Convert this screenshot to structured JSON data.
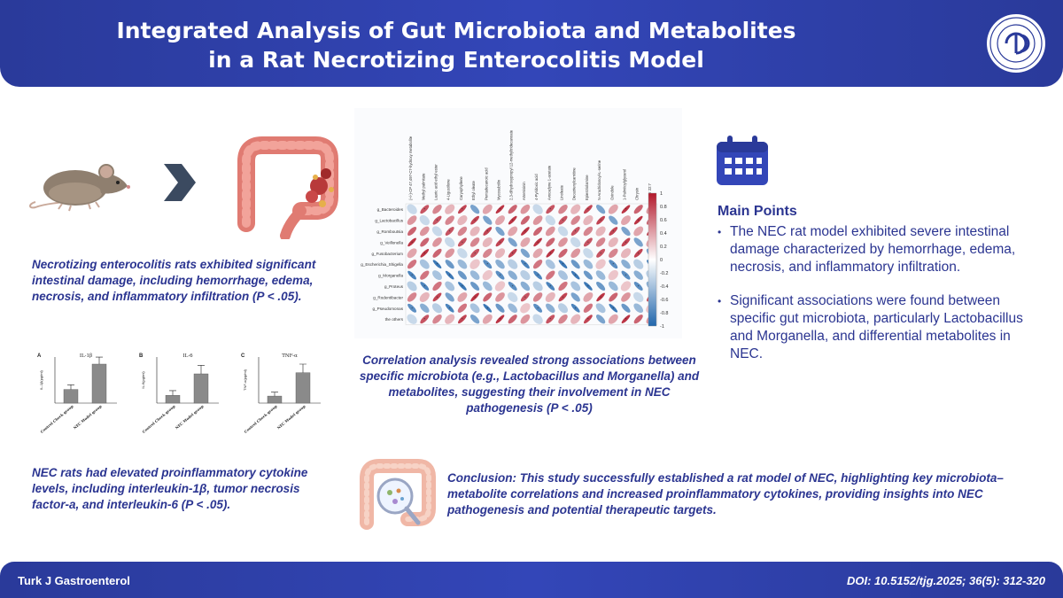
{
  "header": {
    "title": "Integrated Analysis of Gut Microbiota and Metabolites in a Rat Necrotizing Enterocolitis Model"
  },
  "footer": {
    "journal": "Turk J Gastroenterol",
    "doi": "DOI: 10.5152/tjg.2025; 36(5): 312-320"
  },
  "captions": {
    "histology": "Necrotizing enterocolitis rats exhibited significant intestinal damage, including hemorrhage, edema, necrosis, and inflammatory infiltration (P < .05).",
    "correlation": "Correlation analysis revealed strong associations between specific microbiota (e.g., Lactobacillus and Morganella) and metabolites, suggesting their involvement in NEC pathogenesis (P < .05)",
    "cytokines": "NEC rats had elevated proinflammatory cytokine levels, including interleukin-1β, tumor necrosis factor-a, and interleukin-6 (P < .05).",
    "conclusion": "Conclusion: This study successfully established a rat model of NEC, highlighting key microbiota–metabolite correlations and increased proinflammatory cytokines, providing insights into NEC pathogenesis and potential therapeutic targets."
  },
  "main_points": {
    "title": "Main Points",
    "items": [
      "The NEC rat model exhibited severe intestinal damage characterized by hemorrhage, edema, necrosis, and inflammatory infiltration.",
      "Significant associations were found between specific gut microbiota, particularly Lactobacillus and Morganella, and differential metabolites in NEC."
    ]
  },
  "heatmap": {
    "rows": [
      "g_Bacteroides",
      "g_Lactobacillus",
      "g_Romboutsia",
      "g_Veillonella",
      "g_Fusobacterium",
      "g_Escherichia_Shigella",
      "g_Morganella",
      "g_Proteus",
      "g_Rodentibacter",
      "g_Pseudomonas",
      "the others"
    ],
    "columns": [
      "(+/-)-CP 47,497-C7-hydroxy metabolite",
      "Methyl palmitate",
      "Lauric acid ethyl ester",
      "4-Ligustilone",
      "Caryophyllene",
      "Ethyl oleate",
      "Pentadecanoic acid",
      "Mycosubtilin",
      "2,3-dihydroxypropyl 12-methyltridecanoate",
      "Artemisinin",
      "4-Pyridoxic acid",
      "Avocadyne 1-acetate",
      "Linoleate",
      "Decatrienylcarnitine",
      "Epiestriolamine",
      "N-Arachidonoyl-L-serine",
      "Oxindole",
      "1-Palmitoylglycerol",
      "Chrysin",
      "ACar 22:7"
    ],
    "scale_ticks": [
      "1",
      "0.8",
      "0.6",
      "0.4",
      "0.2",
      "0",
      "-0.2",
      "-0.4",
      "-0.6",
      "-0.8",
      "-1"
    ],
    "colors": {
      "positive": "#b2182b",
      "negative": "#2166ac",
      "zero": "#ffffff"
    }
  },
  "cytokine_panels": [
    {
      "letter": "A",
      "title": "IL-1β",
      "ylabel": "IL-1β(pg/ml)",
      "categories": [
        "Control Check group",
        "NEC Model group"
      ],
      "values": [
        0.35,
        1.0
      ],
      "errors": [
        0.12,
        0.18
      ]
    },
    {
      "letter": "B",
      "title": "IL-6",
      "ylabel": "IL-6(pg/ml)",
      "categories": [
        "Control Check group",
        "NEC Model group"
      ],
      "values": [
        0.2,
        0.75
      ],
      "errors": [
        0.12,
        0.22
      ]
    },
    {
      "letter": "C",
      "title": "TNF-α",
      "ylabel": "TNF-α(pg/ml)",
      "categories": [
        "Control Check group",
        "NEC Model group"
      ],
      "values": [
        0.18,
        0.78
      ],
      "errors": [
        0.1,
        0.22
      ]
    }
  ],
  "icons": {
    "calendar": "calendar-icon",
    "seal": "journal-seal",
    "arrow": "chevron-right-icon"
  },
  "colors": {
    "brand": "#3346b8",
    "text": "#2b3591"
  }
}
